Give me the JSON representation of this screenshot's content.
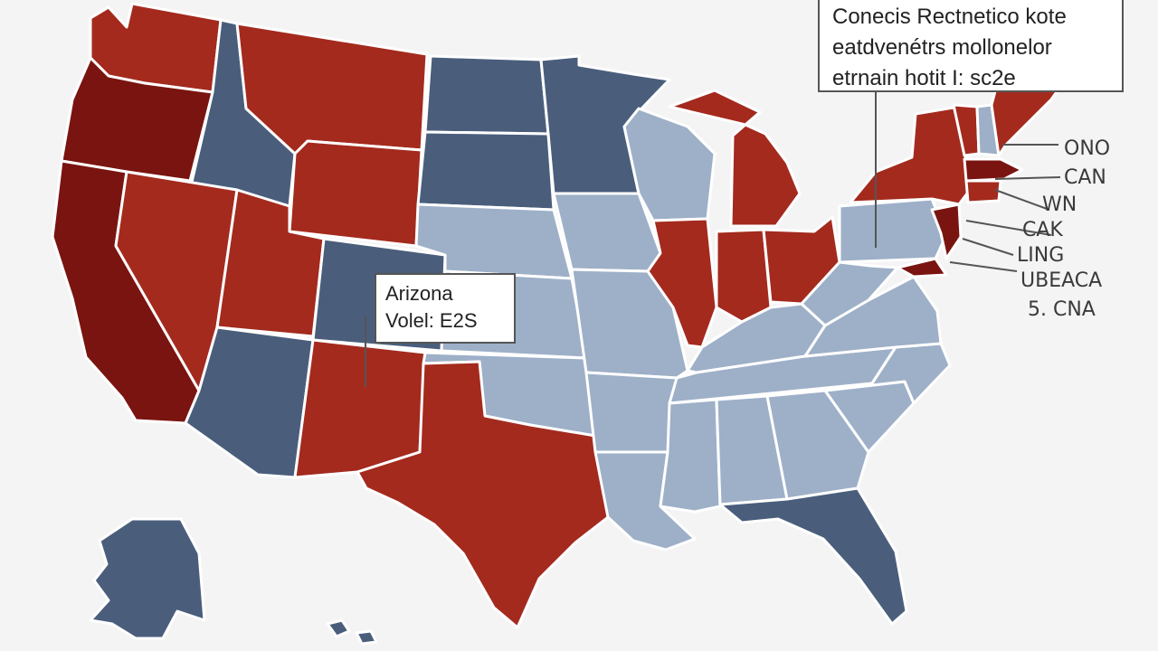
{
  "colors": {
    "background": "#f4f4f5",
    "republican_dark": "#7a1410",
    "republican": "#a42a1e",
    "democrat": "#4a5e7c",
    "lean_democrat": "#9eb0c8",
    "border": "#ffffff"
  },
  "states": [
    {
      "id": "washington",
      "party": "republican"
    },
    {
      "id": "oregon",
      "party": "republican_dark"
    },
    {
      "id": "california",
      "party": "republican_dark"
    },
    {
      "id": "idaho",
      "party": "democrat"
    },
    {
      "id": "montana",
      "party": "republican"
    },
    {
      "id": "wyoming",
      "party": "republican"
    },
    {
      "id": "nevada",
      "party": "republican"
    },
    {
      "id": "utah",
      "party": "republican"
    },
    {
      "id": "colorado",
      "party": "democrat"
    },
    {
      "id": "arizona",
      "party": "democrat"
    },
    {
      "id": "new-mexico",
      "party": "republican"
    },
    {
      "id": "north-dakota",
      "party": "democrat"
    },
    {
      "id": "south-dakota",
      "party": "democrat"
    },
    {
      "id": "nebraska",
      "party": "lean_democrat"
    },
    {
      "id": "kansas",
      "party": "lean_democrat"
    },
    {
      "id": "oklahoma",
      "party": "lean_democrat"
    },
    {
      "id": "texas",
      "party": "republican"
    },
    {
      "id": "minnesota",
      "party": "democrat"
    },
    {
      "id": "iowa",
      "party": "lean_democrat"
    },
    {
      "id": "missouri",
      "party": "lean_democrat"
    },
    {
      "id": "arkansas",
      "party": "lean_democrat"
    },
    {
      "id": "louisiana",
      "party": "lean_democrat"
    },
    {
      "id": "wisconsin",
      "party": "lean_democrat"
    },
    {
      "id": "illinois",
      "party": "republican"
    },
    {
      "id": "michigan",
      "party": "republican"
    },
    {
      "id": "indiana",
      "party": "republican"
    },
    {
      "id": "ohio",
      "party": "republican"
    },
    {
      "id": "kentucky",
      "party": "lean_democrat"
    },
    {
      "id": "tennessee",
      "party": "lean_democrat"
    },
    {
      "id": "mississippi",
      "party": "lean_democrat"
    },
    {
      "id": "alabama",
      "party": "lean_democrat"
    },
    {
      "id": "georgia",
      "party": "lean_democrat"
    },
    {
      "id": "florida",
      "party": "democrat"
    },
    {
      "id": "south-carolina",
      "party": "lean_democrat"
    },
    {
      "id": "north-carolina",
      "party": "lean_democrat"
    },
    {
      "id": "virginia",
      "party": "lean_democrat"
    },
    {
      "id": "west-virginia",
      "party": "lean_democrat"
    },
    {
      "id": "pennsylvania",
      "party": "lean_democrat"
    },
    {
      "id": "new-york",
      "party": "republican"
    },
    {
      "id": "vermont",
      "party": "republican"
    },
    {
      "id": "new-hampshire",
      "party": "lean_democrat"
    },
    {
      "id": "maine",
      "party": "republican"
    },
    {
      "id": "massachusetts",
      "party": "republican_dark"
    },
    {
      "id": "connecticut",
      "party": "republican"
    },
    {
      "id": "new-jersey",
      "party": "republican_dark"
    },
    {
      "id": "maryland",
      "party": "republican_dark"
    },
    {
      "id": "alaska",
      "party": "democrat"
    },
    {
      "id": "hawaii",
      "party": "democrat"
    }
  ],
  "title_box": {
    "lines": [
      "Conecis Rectnetico kote",
      "eatdvenétrs mollonelor",
      "etrnain hotit I: sc2e"
    ]
  },
  "arizona_box": {
    "line1": "Arizona",
    "line2": "Volel: E2S"
  },
  "legend": {
    "items": [
      "ONO",
      "CAN",
      "WN",
      "CAK",
      "LING",
      "UBEACA",
      "5. CNA"
    ]
  }
}
